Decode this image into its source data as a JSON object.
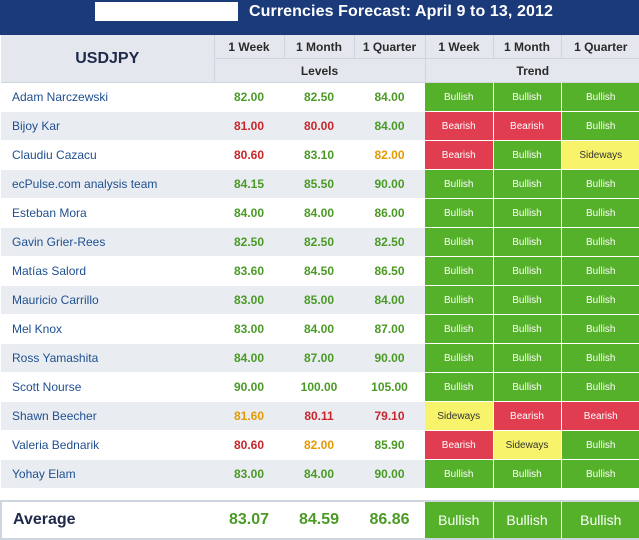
{
  "title": "Currencies Forecast: April 9 to 13, 2012",
  "pair": "USDJPY",
  "columns": {
    "levels": [
      "1 Week",
      "1 Month",
      "1 Quarter"
    ],
    "trend": [
      "1 Week",
      "1 Month",
      "1 Quarter"
    ],
    "levels_group": "Levels",
    "trend_group": "Trend"
  },
  "colors": {
    "header_bg": "#1a3a7a",
    "bullish": "#55b02a",
    "bearish": "#e03d50",
    "sideways": "#f7f36a",
    "value_green": "#4a9a25",
    "value_red": "#c8262b",
    "value_orange": "#e59a00"
  },
  "rows": [
    {
      "name": "Adam Narczewski",
      "levels": [
        "82.00",
        "82.50",
        "84.00"
      ],
      "level_colors": [
        "green",
        "green",
        "green"
      ],
      "trend": [
        "Bullish",
        "Bullish",
        "Bullish"
      ]
    },
    {
      "name": "Bijoy Kar",
      "levels": [
        "81.00",
        "80.00",
        "84.00"
      ],
      "level_colors": [
        "red",
        "red",
        "green"
      ],
      "trend": [
        "Bearish",
        "Bearish",
        "Bullish"
      ]
    },
    {
      "name": "Claudiu Cazacu",
      "levels": [
        "80.60",
        "83.10",
        "82.00"
      ],
      "level_colors": [
        "red",
        "green",
        "orange"
      ],
      "trend": [
        "Bearish",
        "Bullish",
        "Sideways"
      ]
    },
    {
      "name": "ecPulse.com analysis team",
      "levels": [
        "84.15",
        "85.50",
        "90.00"
      ],
      "level_colors": [
        "green",
        "green",
        "green"
      ],
      "trend": [
        "Bullish",
        "Bullish",
        "Bullish"
      ]
    },
    {
      "name": "Esteban Mora",
      "levels": [
        "84.00",
        "84.00",
        "86.00"
      ],
      "level_colors": [
        "green",
        "green",
        "green"
      ],
      "trend": [
        "Bullish",
        "Bullish",
        "Bullish"
      ]
    },
    {
      "name": "Gavin Grier-Rees",
      "levels": [
        "82.50",
        "82.50",
        "82.50"
      ],
      "level_colors": [
        "green",
        "green",
        "green"
      ],
      "trend": [
        "Bullish",
        "Bullish",
        "Bullish"
      ]
    },
    {
      "name": "Matías Salord",
      "levels": [
        "83.60",
        "84.50",
        "86.50"
      ],
      "level_colors": [
        "green",
        "green",
        "green"
      ],
      "trend": [
        "Bullish",
        "Bullish",
        "Bullish"
      ]
    },
    {
      "name": "Mauricio Carrillo",
      "levels": [
        "83.00",
        "85.00",
        "84.00"
      ],
      "level_colors": [
        "green",
        "green",
        "green"
      ],
      "trend": [
        "Bullish",
        "Bullish",
        "Bullish"
      ]
    },
    {
      "name": "Mel Knox",
      "levels": [
        "83.00",
        "84.00",
        "87.00"
      ],
      "level_colors": [
        "green",
        "green",
        "green"
      ],
      "trend": [
        "Bullish",
        "Bullish",
        "Bullish"
      ]
    },
    {
      "name": "Ross Yamashita",
      "levels": [
        "84.00",
        "87.00",
        "90.00"
      ],
      "level_colors": [
        "green",
        "green",
        "green"
      ],
      "trend": [
        "Bullish",
        "Bullish",
        "Bullish"
      ]
    },
    {
      "name": "Scott Nourse",
      "levels": [
        "90.00",
        "100.00",
        "105.00"
      ],
      "level_colors": [
        "green",
        "green",
        "green"
      ],
      "trend": [
        "Bullish",
        "Bullish",
        "Bullish"
      ]
    },
    {
      "name": "Shawn Beecher",
      "levels": [
        "81.60",
        "80.11",
        "79.10"
      ],
      "level_colors": [
        "orange",
        "red",
        "red"
      ],
      "trend": [
        "Sideways",
        "Bearish",
        "Bearish"
      ]
    },
    {
      "name": "Valeria Bednarik",
      "levels": [
        "80.60",
        "82.00",
        "85.90"
      ],
      "level_colors": [
        "red",
        "orange",
        "green"
      ],
      "trend": [
        "Bearish",
        "Sideways",
        "Bullish"
      ]
    },
    {
      "name": "Yohay Elam",
      "levels": [
        "83.00",
        "84.00",
        "90.00"
      ],
      "level_colors": [
        "green",
        "green",
        "green"
      ],
      "trend": [
        "Bullish",
        "Bullish",
        "Bullish"
      ]
    }
  ],
  "average": {
    "label": "Average",
    "levels": [
      "83.07",
      "84.59",
      "86.86"
    ],
    "trend": [
      "Bullish",
      "Bullish",
      "Bullish"
    ]
  }
}
